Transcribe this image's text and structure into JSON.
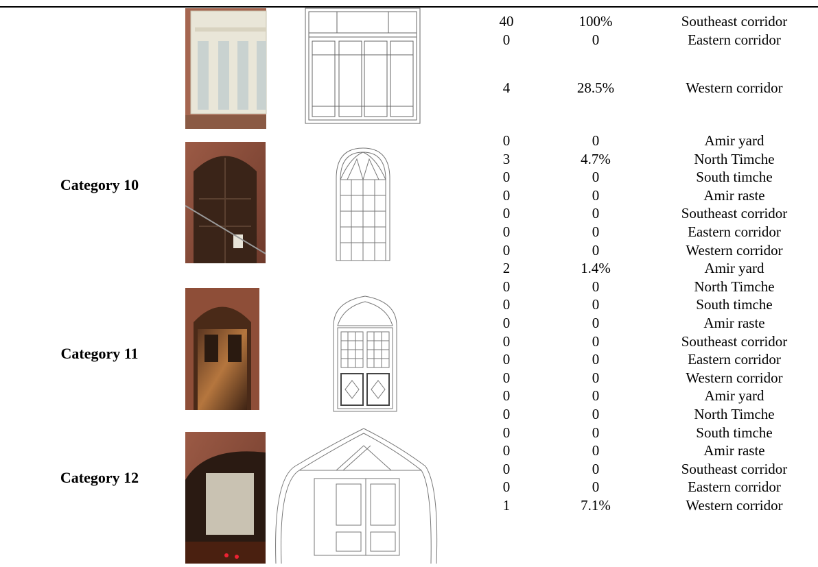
{
  "groups": [
    {
      "rows": [
        [
          "40",
          "100%",
          "Southeast corridor"
        ],
        [
          "0",
          "0",
          "Eastern corridor"
        ],
        [
          "4",
          "28.5%",
          "Western corridor"
        ]
      ]
    },
    {
      "category": "Category 10",
      "rows": [
        [
          "0",
          "0",
          "Amir yard"
        ],
        [
          "3",
          "4.7%",
          "North Timche"
        ],
        [
          "0",
          "0",
          "South timche"
        ],
        [
          "0",
          "0",
          "Amir raste"
        ],
        [
          "0",
          "0",
          "Southeast corridor"
        ],
        [
          "0",
          "0",
          "Eastern corridor"
        ],
        [
          "0",
          "0",
          "Western corridor"
        ]
      ]
    },
    {
      "category": "Category 11",
      "rows": [
        [
          "2",
          "1.4%",
          "Amir yard"
        ],
        [
          "0",
          "0",
          "North Timche"
        ],
        [
          "0",
          "0",
          "South timche"
        ],
        [
          "0",
          "0",
          "Amir raste"
        ],
        [
          "0",
          "0",
          "Southeast corridor"
        ],
        [
          "0",
          "0",
          "Eastern corridor"
        ],
        [
          "0",
          "0",
          "Western corridor"
        ]
      ]
    },
    {
      "category": "Category 12",
      "rows": [
        [
          "0",
          "0",
          "Amir yard"
        ],
        [
          "0",
          "0",
          "North Timche"
        ],
        [
          "0",
          "0",
          "South timche"
        ],
        [
          "0",
          "0",
          "Amir raste"
        ],
        [
          "0",
          "0",
          "Southeast corridor"
        ],
        [
          "0",
          "0",
          "Eastern corridor"
        ],
        [
          "1",
          "7.1%",
          "Western corridor"
        ]
      ]
    }
  ]
}
